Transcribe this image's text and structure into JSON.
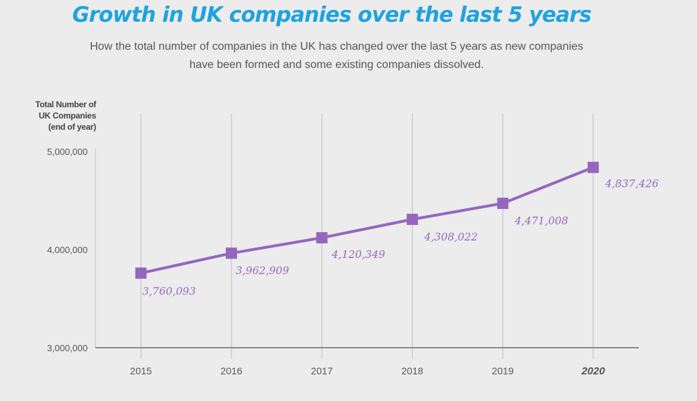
{
  "chart_data": {
    "type": "line",
    "title": "Growth in UK companies over the last 5 years",
    "subtitle_lines": [
      "How the total number of companies in the UK has changed over the last 5 years as new companies",
      "have been formed and some existing companies dissolved."
    ],
    "ylabel_lines": [
      "Total Number of",
      "UK Companies",
      "(end of year)"
    ],
    "xlabel": "",
    "categories": [
      "2015",
      "2016",
      "2017",
      "2018",
      "2019",
      "2020"
    ],
    "series": [
      {
        "name": "Total Number of UK Companies",
        "values": [
          3760093,
          3962909,
          4120349,
          4308022,
          4471008,
          4837426
        ],
        "labels": [
          "3,760,093",
          "3,962,909",
          "4,120,349",
          "4,308,022",
          "4,471,008",
          "4,837,426"
        ],
        "color": "#9467bd"
      }
    ],
    "ylim": [
      3000000,
      5000000
    ],
    "yticks": [
      3000000,
      4000000,
      5000000
    ],
    "ytick_labels": [
      "3,000,000",
      "4,000,000",
      "5,000,000"
    ],
    "grid": "vertical",
    "legend": "none",
    "highlighted_category": "2020"
  },
  "colors": {
    "title": "#1fa3dc",
    "line": "#9467bd",
    "text": "#555555",
    "background": "#ececec"
  }
}
